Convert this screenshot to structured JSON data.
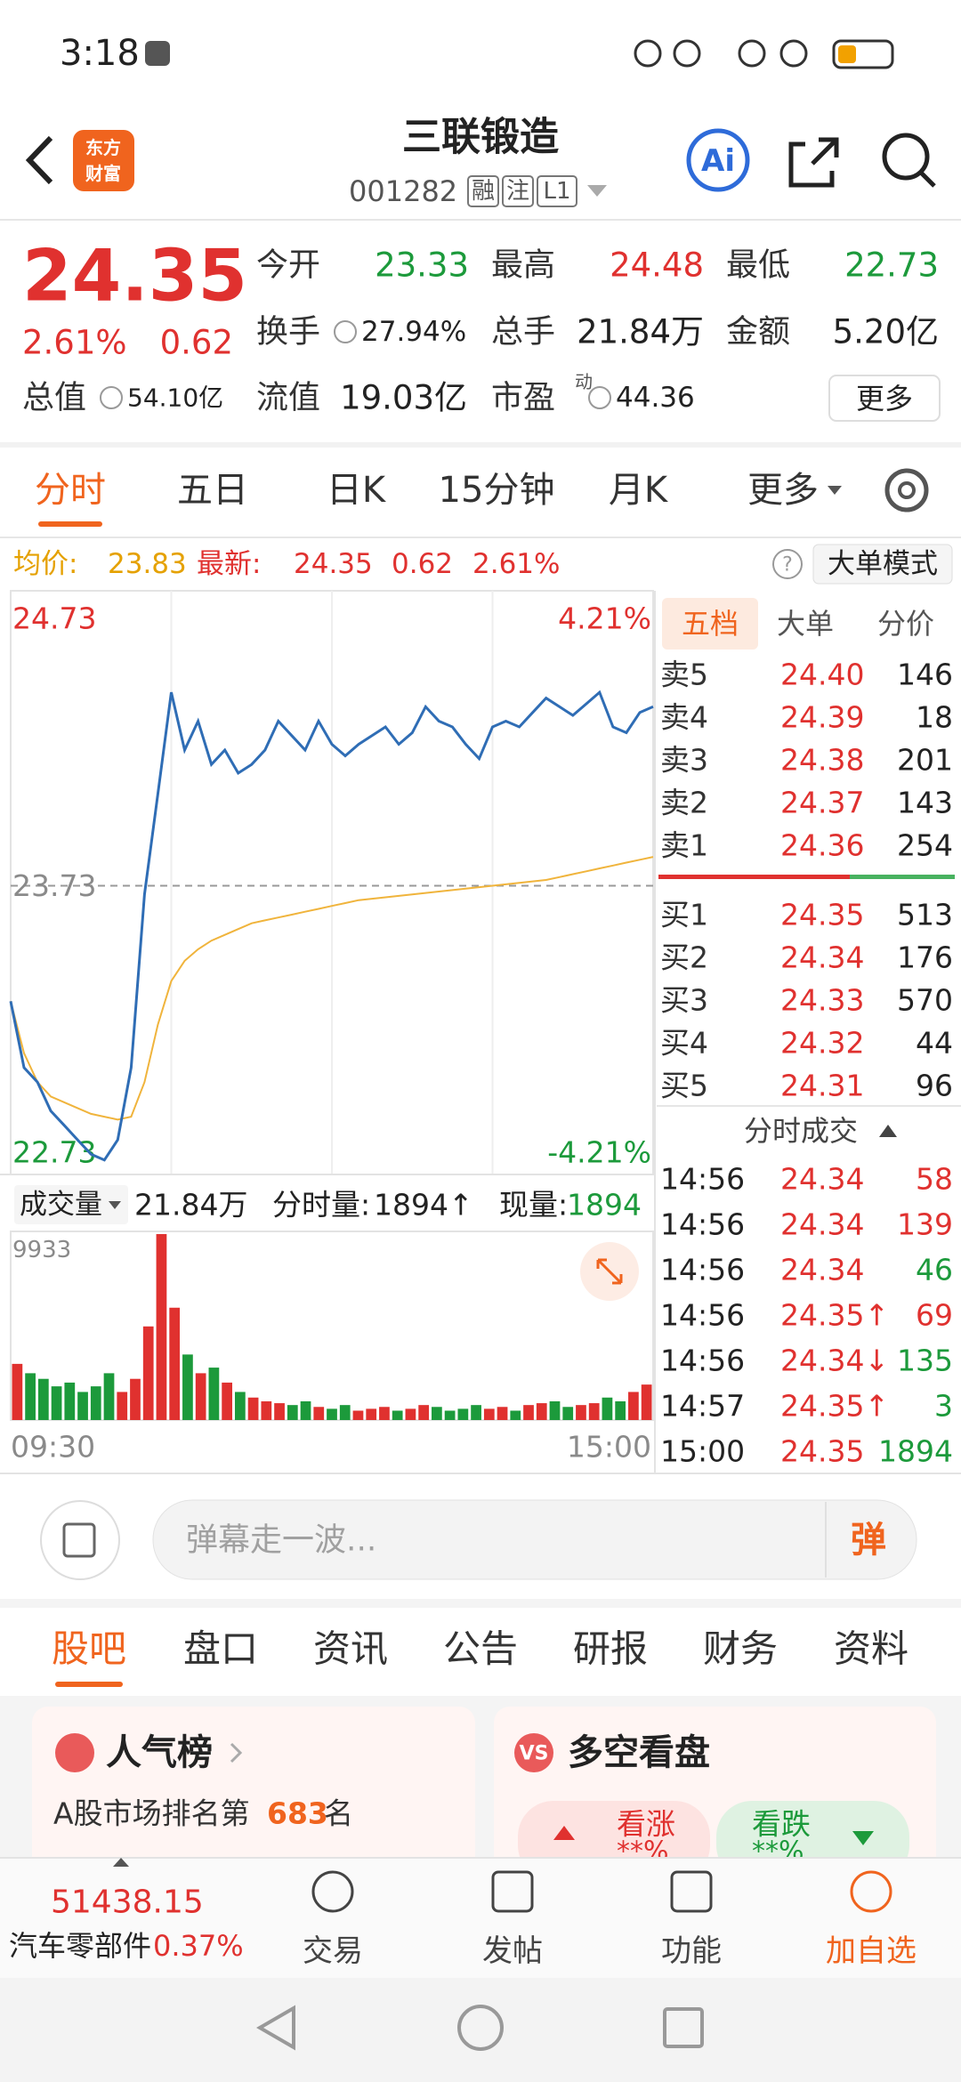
{
  "status_bar": {
    "time": "3:18"
  },
  "header": {
    "logo": [
      "东方",
      "财富"
    ],
    "title": "三联锻造",
    "code": "001282",
    "tags": [
      "融",
      "注",
      "L1"
    ],
    "ai": "Ai"
  },
  "quote": {
    "price": "24.35",
    "change_pct": "2.61%",
    "change": "0.62",
    "color": "#e0312f",
    "fields": [
      {
        "label": "今开",
        "value": "23.33",
        "color": "#1c9a3b"
      },
      {
        "label": "最高",
        "value": "24.48",
        "color": "#e0312f"
      },
      {
        "label": "最低",
        "value": "22.73",
        "color": "#1c9a3b"
      },
      {
        "label": "换手",
        "value": "27.94%",
        "color": "#222222",
        "icon": true
      },
      {
        "label": "总手",
        "value": "21.84万",
        "color": "#222222"
      },
      {
        "label": "金额",
        "value": "5.20亿",
        "color": "#222222"
      },
      {
        "label": "总值",
        "value": "54.10亿",
        "color": "#222222",
        "icon": true
      },
      {
        "label": "流值",
        "value": "19.03亿",
        "color": "#222222"
      },
      {
        "label": "市盈",
        "value": "44.36",
        "color": "#222222",
        "icon": true,
        "sup": "动"
      }
    ],
    "more": "更多"
  },
  "tabs": {
    "items": [
      "分时",
      "五日",
      "日K",
      "15分钟",
      "月K",
      "更多"
    ],
    "active": 0
  },
  "info_bar": {
    "avg_label": "均价:",
    "avg": "23.83",
    "latest_label": "最新:",
    "latest": "24.35",
    "change": "0.62",
    "change_pct": "2.61%",
    "help": "?",
    "mode": "大单模式"
  },
  "chart": {
    "ylim": [
      22.73,
      24.73
    ],
    "yticks": [
      22.73,
      23.73,
      24.73
    ],
    "pct_labels": [
      "4.21%",
      "-4.21%"
    ],
    "price": {
      "color": "#2f6db5",
      "values": [
        23.33,
        23.1,
        23.05,
        22.95,
        22.9,
        22.85,
        22.8,
        22.78,
        22.85,
        23.1,
        23.7,
        24.05,
        24.4,
        24.2,
        24.3,
        24.15,
        24.2,
        24.12,
        24.15,
        24.2,
        24.3,
        24.25,
        24.2,
        24.3,
        24.22,
        24.18,
        24.22,
        24.25,
        24.28,
        24.22,
        24.26,
        24.35,
        24.3,
        24.28,
        24.22,
        24.17,
        24.28,
        24.3,
        24.28,
        24.33,
        24.38,
        24.35,
        24.32,
        24.36,
        24.4,
        24.28,
        24.26,
        24.33,
        24.35
      ]
    },
    "avg": {
      "color": "#f0b43c",
      "values": [
        23.33,
        23.15,
        23.05,
        23.0,
        22.98,
        22.96,
        22.94,
        22.93,
        22.92,
        22.93,
        23.05,
        23.25,
        23.4,
        23.47,
        23.51,
        23.54,
        23.56,
        23.58,
        23.6,
        23.61,
        23.62,
        23.63,
        23.64,
        23.65,
        23.66,
        23.67,
        23.68,
        23.685,
        23.69,
        23.695,
        23.7,
        23.705,
        23.71,
        23.715,
        23.72,
        23.725,
        23.73,
        23.735,
        23.74,
        23.745,
        23.75,
        23.76,
        23.77,
        23.78,
        23.79,
        23.8,
        23.81,
        23.82,
        23.83
      ]
    },
    "volume": {
      "ylim": [
        0,
        9933
      ],
      "yticks": [
        9933
      ],
      "up_color": "#e0312f",
      "down_color": "#1c9a3b",
      "values": [
        3000,
        2500,
        2200,
        1800,
        2000,
        1500,
        1800,
        2500,
        1500,
        2200,
        5000,
        9933,
        6000,
        3500,
        2500,
        2800,
        2000,
        1500,
        1200,
        1000,
        900,
        800,
        1000,
        700,
        600,
        800,
        500,
        600,
        700,
        500,
        600,
        800,
        700,
        500,
        600,
        800,
        600,
        700,
        500,
        800,
        900,
        1000,
        700,
        800,
        900,
        1200,
        1000,
        1500,
        1894
      ]
    },
    "times": [
      "09:30",
      "15:00"
    ]
  },
  "volume_bar": {
    "label": "成交量",
    "total": "21.84万",
    "minute_label": "分时量:",
    "minute": "1894↑",
    "current_label": "现量:",
    "current": "1894"
  },
  "order_book": {
    "tabs": [
      "五档",
      "大单",
      "分价"
    ],
    "asks": [
      {
        "label": "卖5",
        "price": "24.40",
        "vol": "146"
      },
      {
        "label": "卖4",
        "price": "24.39",
        "vol": "18"
      },
      {
        "label": "卖3",
        "price": "24.38",
        "vol": "201"
      },
      {
        "label": "卖2",
        "price": "24.37",
        "vol": "143"
      },
      {
        "label": "卖1",
        "price": "24.36",
        "vol": "254"
      }
    ],
    "bids": [
      {
        "label": "买1",
        "price": "24.35",
        "vol": "513"
      },
      {
        "label": "买2",
        "price": "24.34",
        "vol": "176"
      },
      {
        "label": "买3",
        "price": "24.33",
        "vol": "570"
      },
      {
        "label": "买4",
        "price": "24.32",
        "vol": "44"
      },
      {
        "label": "买5",
        "price": "24.31",
        "vol": "96"
      }
    ]
  },
  "trades": {
    "title": "分时成交",
    "rows": [
      {
        "time": "14:56",
        "price": "24.34",
        "vol": "58",
        "color": "#e0312f"
      },
      {
        "time": "14:56",
        "price": "24.34",
        "vol": "139",
        "color": "#e0312f"
      },
      {
        "time": "14:56",
        "price": "24.34",
        "vol": "46",
        "color": "#1c9a3b"
      },
      {
        "time": "14:56",
        "price": "24.35↑",
        "vol": "69",
        "color": "#e0312f"
      },
      {
        "time": "14:56",
        "price": "24.34↓",
        "vol": "135",
        "color": "#1c9a3b"
      },
      {
        "time": "14:57",
        "price": "24.35↑",
        "vol": "3",
        "color": "#1c9a3b"
      },
      {
        "time": "15:00",
        "price": "24.35",
        "vol": "1894",
        "color": "#1c9a3b"
      }
    ]
  },
  "comment": {
    "placeholder": "弹幕走一波...",
    "button": "弹"
  },
  "sub_tabs": {
    "items": [
      "股吧",
      "盘口",
      "资讯",
      "公告",
      "研报",
      "财务",
      "资料"
    ],
    "active": 0
  },
  "cards": {
    "popularity": {
      "title": "人气榜",
      "prefix": "A股市场排名第",
      "rank": "683",
      "suffix": "名"
    },
    "sentiment": {
      "badge": "VS",
      "title": "多空看盘",
      "up": "看涨",
      "up_pct": "**%",
      "down": "看跌",
      "down_pct": "**%"
    }
  },
  "bottom_bar": {
    "index": "51438.15",
    "sector": "汽车零部件",
    "sector_pct": "0.37%",
    "actions": [
      "交易",
      "发帖",
      "功能",
      "加自选"
    ]
  }
}
